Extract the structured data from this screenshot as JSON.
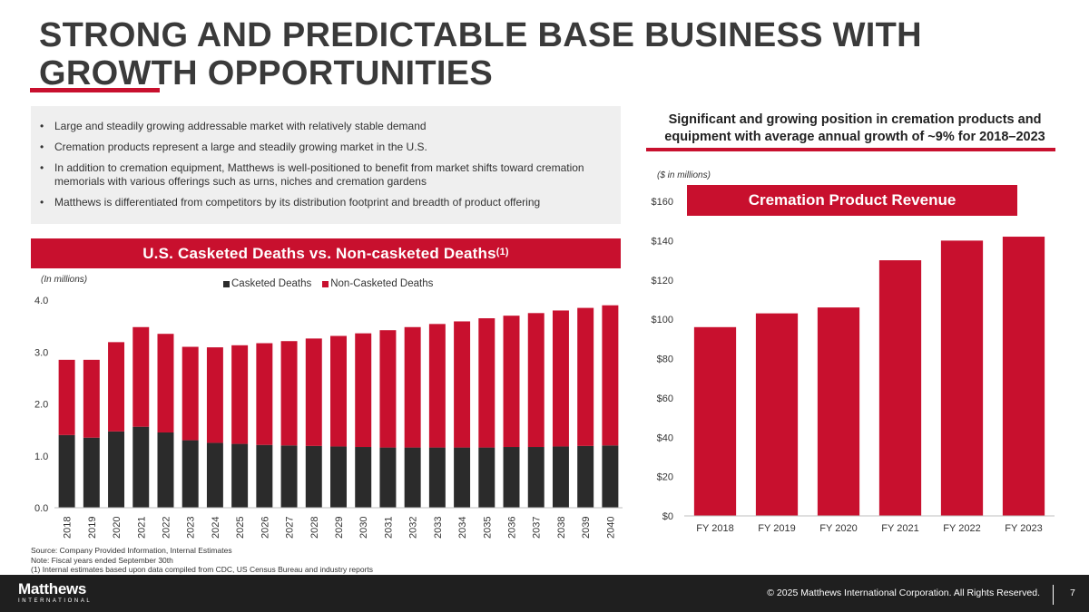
{
  "title": {
    "line1": "STRONG AND PREDICTABLE BASE BUSINESS WITH",
    "line2": "GROWTH OPPORTUNITIES"
  },
  "bullets": [
    "Large and steadily growing addressable market with relatively stable demand",
    "Cremation products represent a large and steadily growing market in the U.S.",
    "In addition to cremation equipment, Matthews is well-positioned to benefit from market shifts toward cremation memorials with various offerings such as urns, niches and cremation gardens",
    "Matthews is differentiated from competitors by its distribution footprint and breadth of product offering"
  ],
  "bullet_symbol": "•",
  "left_banner": {
    "text": "U.S. Casketed Deaths vs. Non-casketed Deaths",
    "sup": "(1)"
  },
  "left_units": "(In millions)",
  "right_heading": "Significant and growing position in cremation products and equipment with average annual growth of ~9% for 2018–2023",
  "right_units": "($ in millions)",
  "footnotes": [
    "Source: Company Provided Information, Internal Estimates",
    "Note: Fiscal years ended September 30th",
    "(1) Internal estimates based upon data compiled from CDC, US Census Bureau and industry reports"
  ],
  "footer": {
    "logo_main": "Matthews",
    "logo_sub": "INTERNATIONAL",
    "copyright": "© 2025 Matthews International Corporation. All Rights Reserved.",
    "page": "7"
  },
  "colors": {
    "accent": "#c8102e",
    "dark": "#2b2b2b",
    "footer": "#1f1f1f"
  },
  "chart_data": [
    {
      "type": "bar",
      "stacked": true,
      "title": "U.S. Casketed Deaths vs. Non-casketed Deaths",
      "ylabel": "(In millions)",
      "ylim": [
        0,
        4
      ],
      "yticks": [
        "0.0",
        "1.0",
        "2.0",
        "3.0",
        "4.0"
      ],
      "legend_position": "top",
      "categories": [
        "2018",
        "2019",
        "2020",
        "2021",
        "2022",
        "2023",
        "2024",
        "2025",
        "2026",
        "2027",
        "2028",
        "2029",
        "2030",
        "2031",
        "2032",
        "2033",
        "2034",
        "2035",
        "2036",
        "2037",
        "2038",
        "2039",
        "2040"
      ],
      "series": [
        {
          "name": "Casketed Deaths",
          "color": "#2b2b2b",
          "values": [
            1.4,
            1.35,
            1.47,
            1.56,
            1.45,
            1.3,
            1.25,
            1.23,
            1.21,
            1.2,
            1.19,
            1.18,
            1.17,
            1.16,
            1.16,
            1.16,
            1.16,
            1.16,
            1.17,
            1.17,
            1.18,
            1.19,
            1.2
          ]
        },
        {
          "name": "Non-Casketed Deaths",
          "color": "#c8102e",
          "values": [
            1.45,
            1.5,
            1.72,
            1.92,
            1.9,
            1.8,
            1.84,
            1.9,
            1.96,
            2.01,
            2.07,
            2.13,
            2.19,
            2.26,
            2.32,
            2.38,
            2.43,
            2.49,
            2.53,
            2.58,
            2.62,
            2.66,
            2.7
          ]
        }
      ]
    },
    {
      "type": "bar",
      "title": "Cremation Product Revenue",
      "ylabel": "($ in millions)",
      "ylim": [
        0,
        160
      ],
      "yticks": [
        "$0",
        "$20",
        "$40",
        "$60",
        "$80",
        "$100",
        "$120",
        "$140",
        "$160"
      ],
      "categories": [
        "FY 2018",
        "FY 2019",
        "FY 2020",
        "FY 2021",
        "FY 2022",
        "FY 2023"
      ],
      "values": [
        96,
        103,
        106,
        130,
        140,
        142
      ],
      "color": "#c8102e"
    }
  ]
}
